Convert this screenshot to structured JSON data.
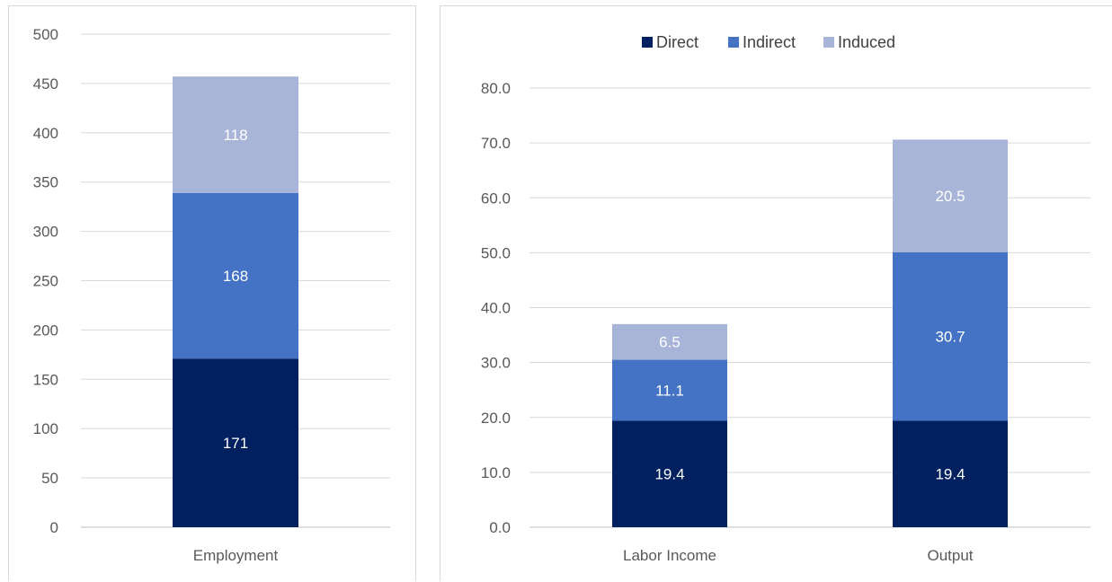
{
  "colors": {
    "Direct": "#002060",
    "Indirect": "#4472C4",
    "Induced": "#A9B4D9",
    "grid": "#d9d9d9",
    "axis": "#bfbfbf"
  },
  "chart_data": [
    {
      "type": "bar",
      "stacked": true,
      "categories": [
        "Employment"
      ],
      "series": [
        {
          "name": "Direct",
          "values": [
            171
          ]
        },
        {
          "name": "Indirect",
          "values": [
            168
          ]
        },
        {
          "name": "Induced",
          "values": [
            118
          ]
        }
      ],
      "value_labels": [
        [
          "171"
        ],
        [
          "168"
        ],
        [
          "118"
        ]
      ],
      "ylim": [
        0,
        500
      ],
      "yticks": [
        "0",
        "50",
        "100",
        "150",
        "200",
        "250",
        "300",
        "350",
        "400",
        "450",
        "500"
      ],
      "grid": true,
      "legend": false
    },
    {
      "type": "bar",
      "stacked": true,
      "categories": [
        "Labor Income",
        "Output"
      ],
      "series": [
        {
          "name": "Direct",
          "values": [
            19.4,
            19.4
          ]
        },
        {
          "name": "Indirect",
          "values": [
            11.1,
            30.7
          ]
        },
        {
          "name": "Induced",
          "values": [
            6.5,
            20.5
          ]
        }
      ],
      "value_labels": [
        [
          "19.4",
          "19.4"
        ],
        [
          "11.1",
          "30.7"
        ],
        [
          "6.5",
          "20.5"
        ]
      ],
      "ylim": [
        0,
        80
      ],
      "yticks": [
        "0.0",
        "10.0",
        "20.0",
        "30.0",
        "40.0",
        "50.0",
        "60.0",
        "70.0",
        "80.0"
      ],
      "grid": true,
      "legend": "top",
      "legend_entries": [
        "Direct",
        "Indirect",
        "Induced"
      ]
    }
  ]
}
